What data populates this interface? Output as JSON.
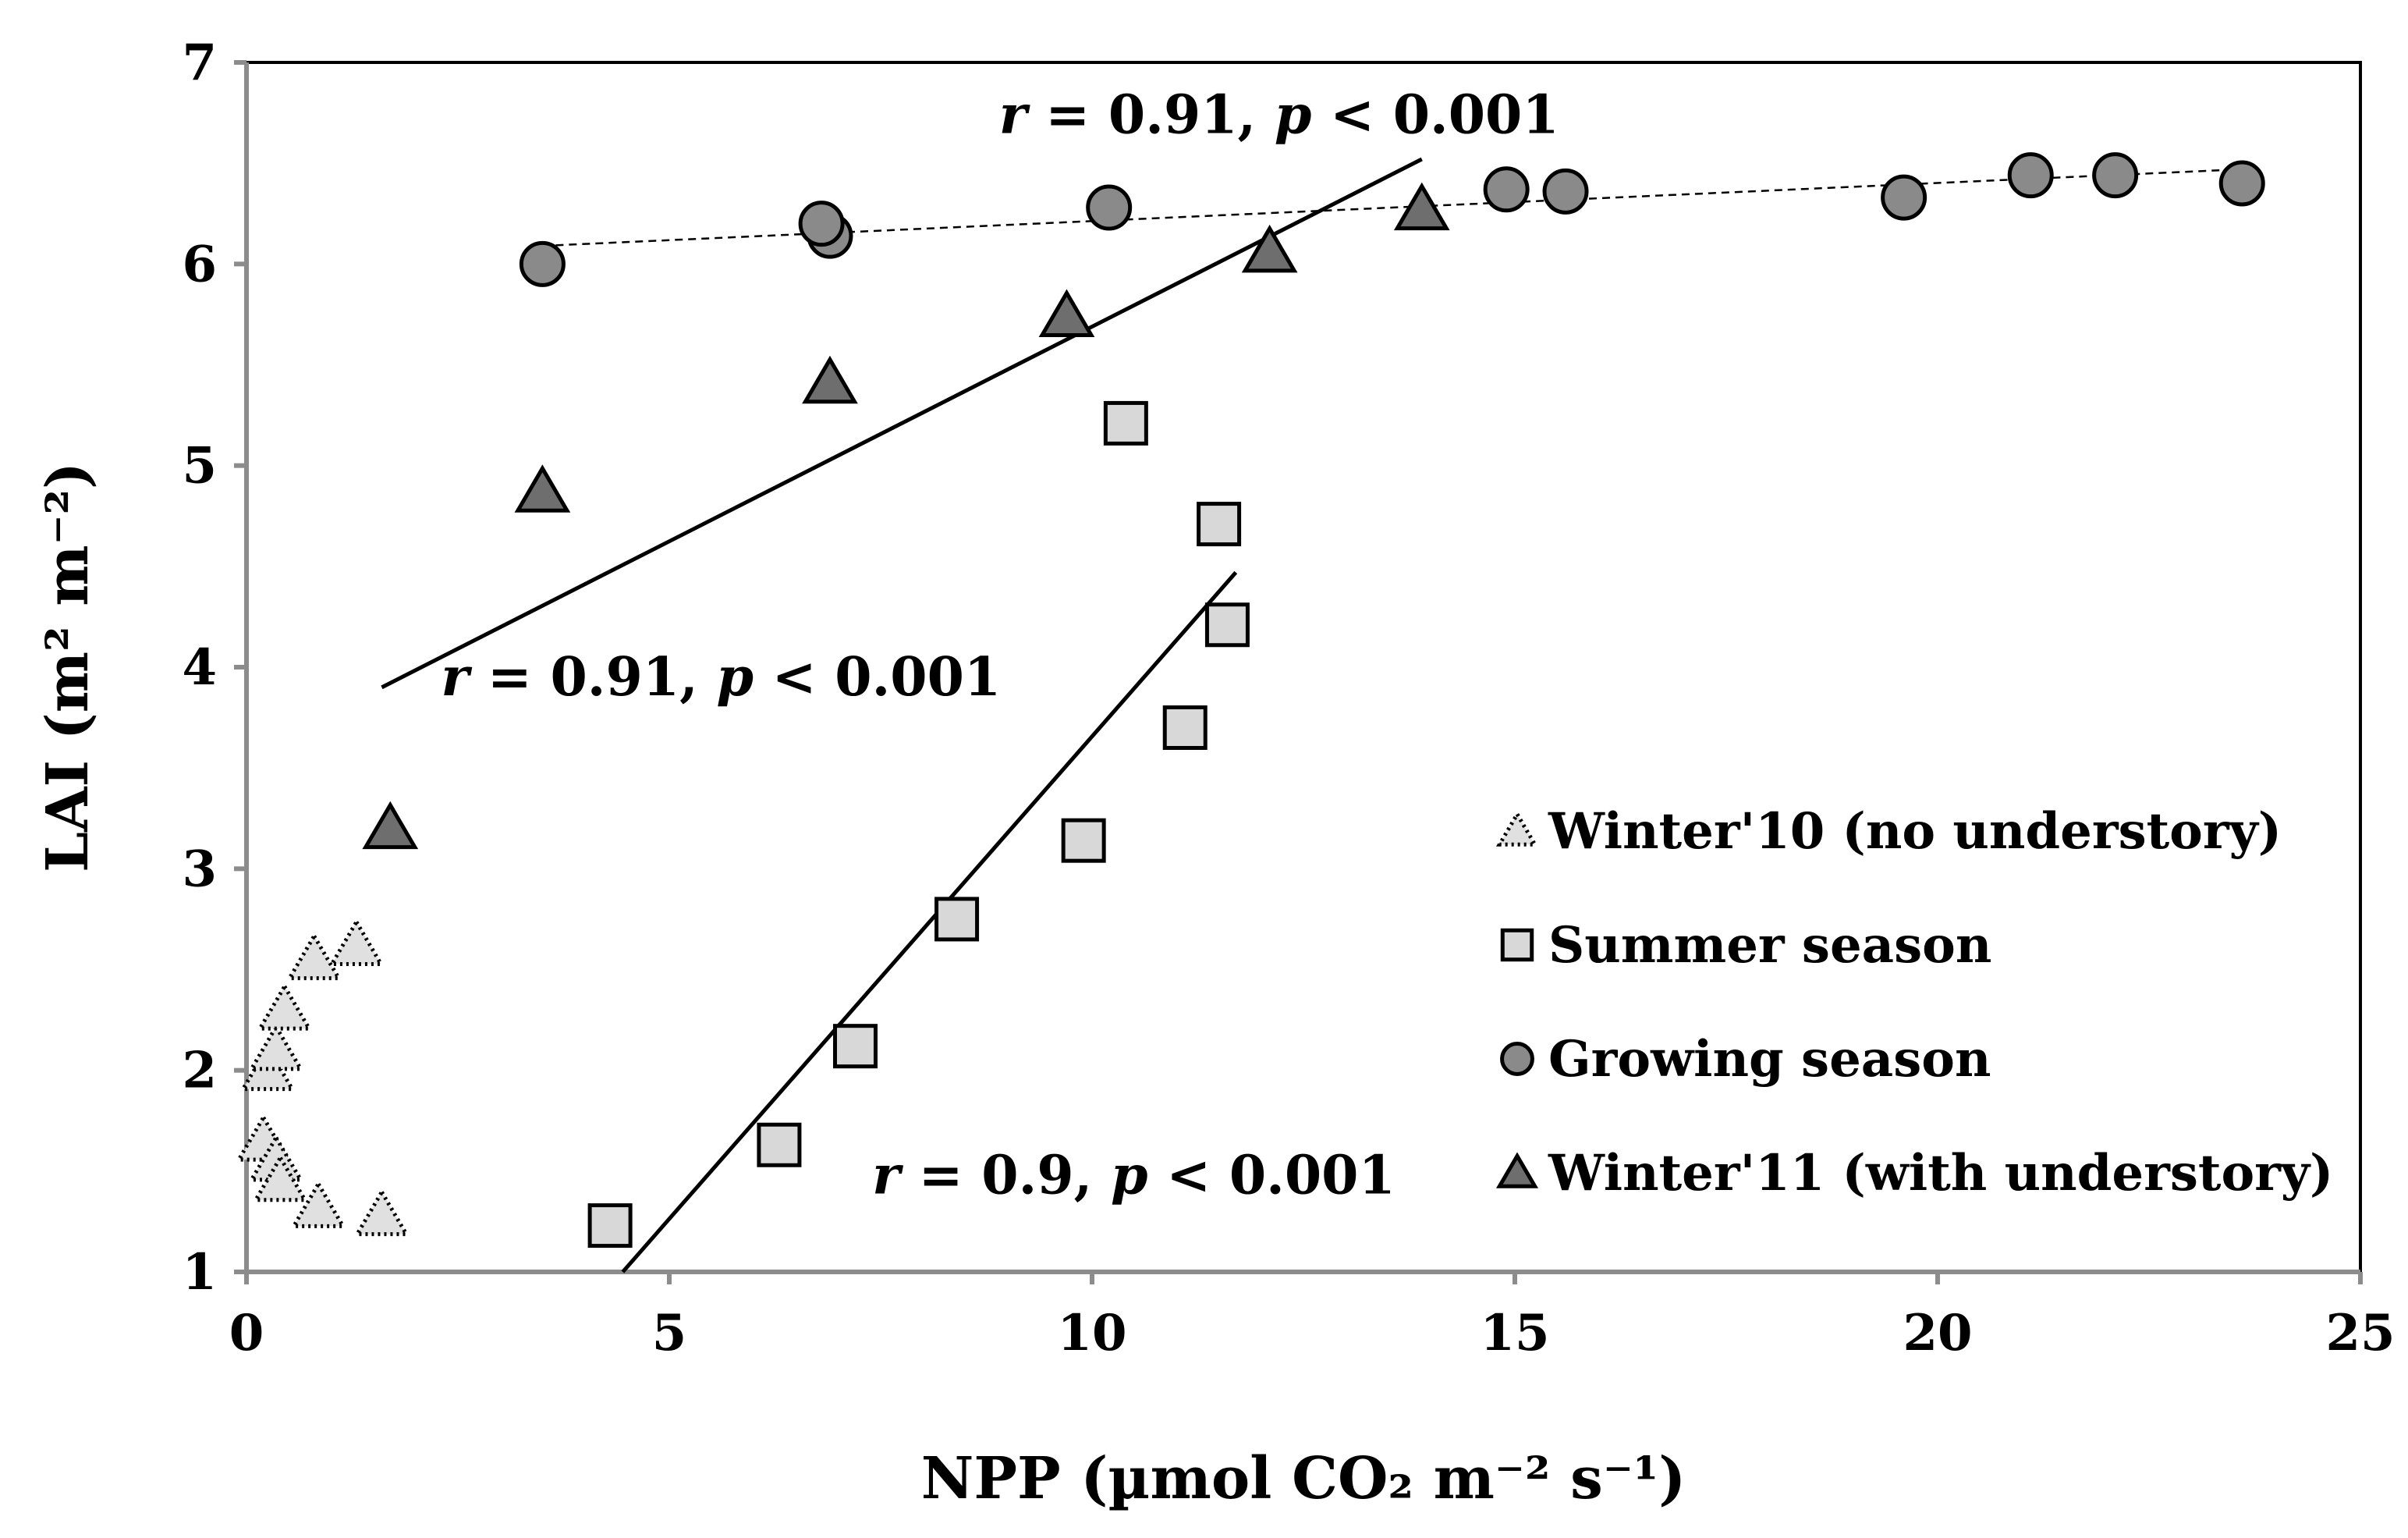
{
  "chart_data": {
    "type": "scatter",
    "title": "",
    "xlabel": "NPP (µmol CO₂ m⁻² s⁻¹)",
    "ylabel": "LAI (m² m⁻²)",
    "xlim": [
      0,
      25
    ],
    "ylim": [
      1,
      7
    ],
    "xticks": [
      0,
      5,
      10,
      15,
      20,
      25
    ],
    "yticks": [
      1,
      2,
      3,
      4,
      5,
      6,
      7
    ],
    "grid": false,
    "legend_position": "bottom-right",
    "series": [
      {
        "name": "Winter'10 (no understory)",
        "marker": "triangle-dotted",
        "fill": "#e0e0e0",
        "points": [
          [
            0.2,
            1.65
          ],
          [
            0.35,
            1.55
          ],
          [
            0.4,
            1.45
          ],
          [
            0.85,
            1.32
          ],
          [
            1.6,
            1.28
          ],
          [
            0.25,
            2.0
          ],
          [
            0.35,
            2.1
          ],
          [
            0.45,
            2.3
          ],
          [
            0.8,
            2.55
          ],
          [
            1.3,
            2.62
          ]
        ]
      },
      {
        "name": "Summer season",
        "marker": "square",
        "fill": "#d8d8d8",
        "points": [
          [
            4.3,
            1.23
          ],
          [
            6.3,
            1.63
          ],
          [
            7.2,
            2.12
          ],
          [
            8.4,
            2.75
          ],
          [
            9.9,
            3.14
          ],
          [
            11.1,
            3.7
          ],
          [
            11.6,
            4.21
          ],
          [
            11.5,
            4.71
          ],
          [
            10.4,
            5.21
          ]
        ]
      },
      {
        "name": "Growing season",
        "marker": "circle",
        "fill": "#8a8a8a",
        "points": [
          [
            3.5,
            6.0
          ],
          [
            6.9,
            6.14
          ],
          [
            6.8,
            6.2
          ],
          [
            10.2,
            6.28
          ],
          [
            14.9,
            6.37
          ],
          [
            15.6,
            6.36
          ],
          [
            19.6,
            6.33
          ],
          [
            21.1,
            6.44
          ],
          [
            22.1,
            6.44
          ],
          [
            23.6,
            6.4
          ]
        ]
      },
      {
        "name": "Winter'11 (with understory)",
        "marker": "triangle",
        "fill": "#6e6e6e",
        "points": [
          [
            1.7,
            3.2
          ],
          [
            3.5,
            4.87
          ],
          [
            6.9,
            5.41
          ],
          [
            9.7,
            5.74
          ],
          [
            12.1,
            6.06
          ],
          [
            13.9,
            6.27
          ]
        ]
      }
    ],
    "fit_lines": [
      {
        "name": "growing-season-fit",
        "style": "dashed",
        "from": [
          3.5,
          6.09
        ],
        "to": [
          23.6,
          6.47
        ]
      },
      {
        "name": "winter11-fit",
        "style": "solid",
        "from": [
          1.6,
          3.9
        ],
        "to": [
          13.9,
          6.52
        ]
      },
      {
        "name": "summer-fit",
        "style": "solid",
        "from": [
          4.45,
          1.0
        ],
        "to": [
          11.7,
          4.47
        ]
      }
    ],
    "annotations": [
      {
        "name": "winter11-stat-top",
        "r_label": "r",
        "p_label": "p",
        "text_pre": " = 0.91, ",
        "text_post": " < 0.001",
        "at": [
          8.9,
          6.65
        ]
      },
      {
        "name": "winter11-stat-bottom",
        "r_label": "r",
        "p_label": "p",
        "text_pre": " = 0.91, ",
        "text_post": " < 0.001",
        "at": [
          2.3,
          3.86
        ]
      },
      {
        "name": "summer-stat",
        "r_label": "r",
        "p_label": "p",
        "text_pre": " = 0.9, ",
        "text_post": " < 0.001",
        "at": [
          7.4,
          1.39
        ]
      }
    ]
  },
  "colors": {
    "axis": "#8c8c8c",
    "frame": "#000000",
    "marker_stroke": "#000000"
  }
}
